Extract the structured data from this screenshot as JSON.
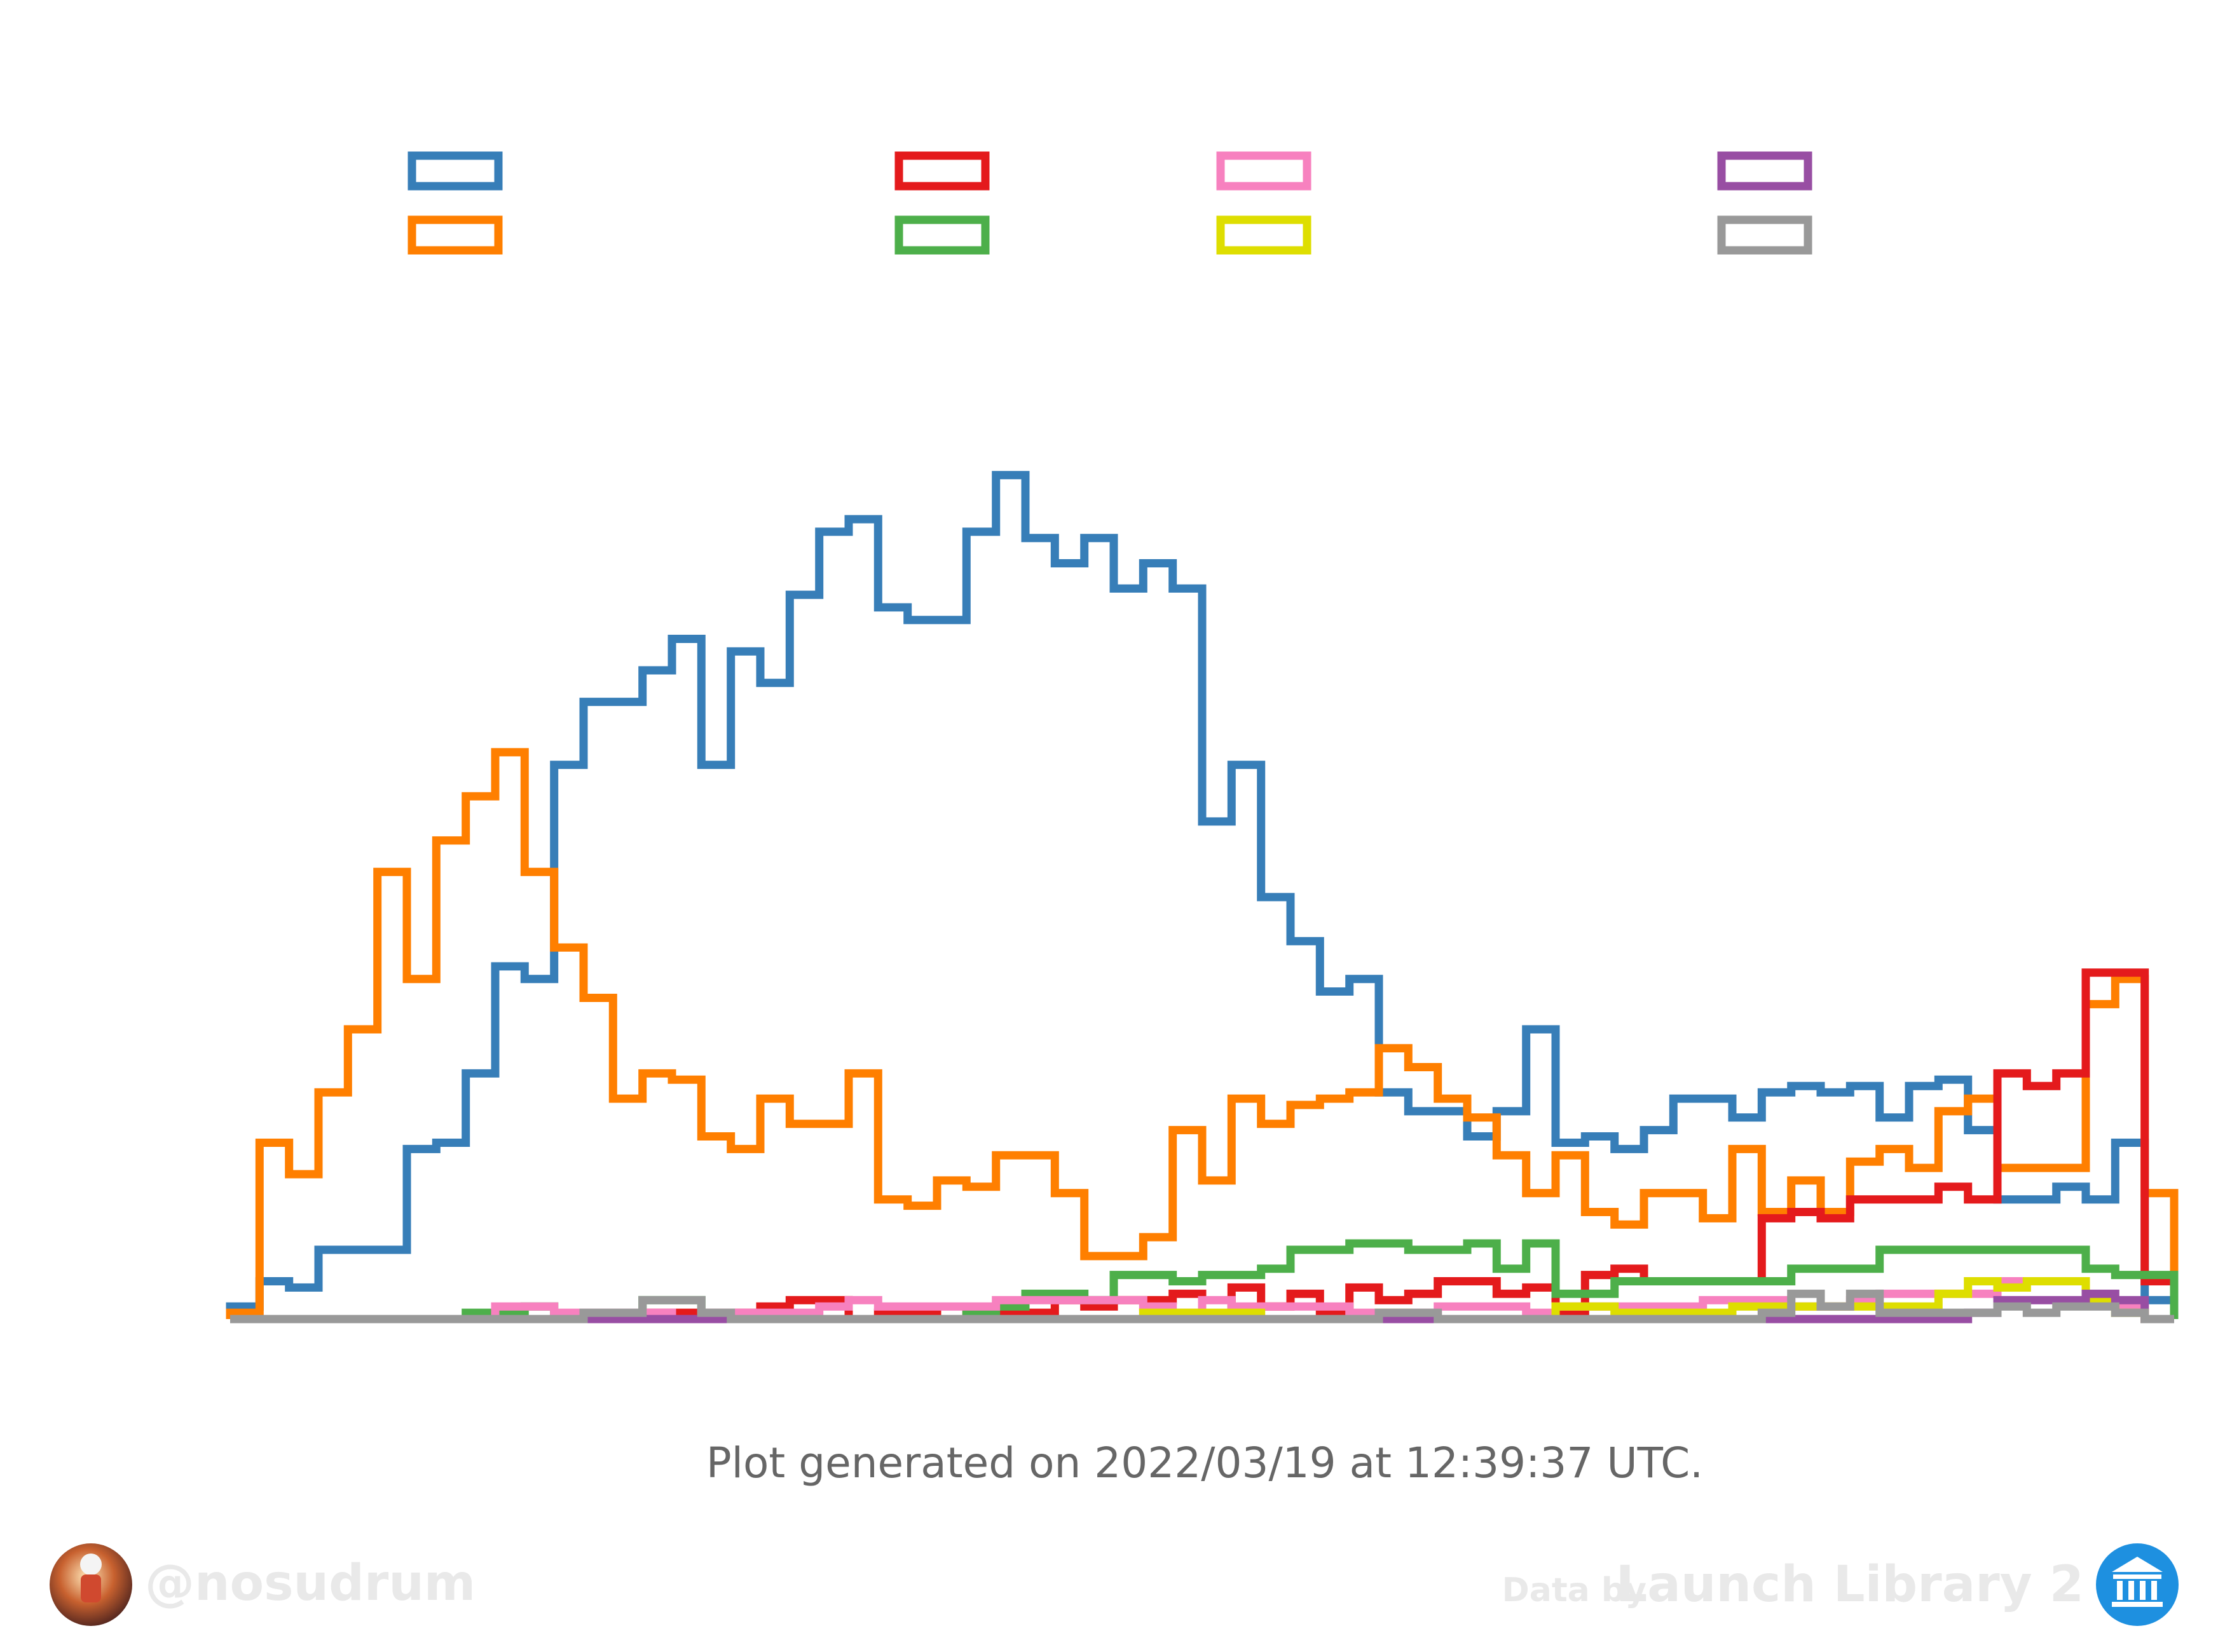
{
  "chart_data": {
    "type": "step",
    "title": "",
    "xlabel": "",
    "ylabel": "",
    "bins": 66,
    "ylim": [
      0,
      160
    ],
    "axes_visible": false,
    "legend": {
      "placement": "top",
      "columns": 4,
      "labels_visible": false
    },
    "series": [
      {
        "color": "#377eb8",
        "values": [
          2,
          6,
          5,
          11,
          11,
          11,
          27,
          28,
          39,
          56,
          54,
          88,
          98,
          98,
          103,
          108,
          88,
          106,
          101,
          115,
          125,
          127,
          113,
          111,
          111,
          125,
          134,
          124,
          120,
          124,
          116,
          120,
          116,
          79,
          88,
          67,
          60,
          52,
          54,
          36,
          33,
          33,
          29,
          33,
          46,
          28,
          29,
          27,
          30,
          35,
          35,
          32,
          36,
          37,
          36,
          37,
          32,
          37,
          38,
          30,
          19,
          19,
          21,
          19,
          28,
          3
        ]
      },
      {
        "color": "#ff7f00",
        "values": [
          1,
          28,
          23,
          36,
          46,
          71,
          54,
          76,
          83,
          90,
          71,
          59,
          51,
          35,
          39,
          38,
          29,
          27,
          35,
          31,
          31,
          39,
          19,
          18,
          22,
          21,
          26,
          26,
          20,
          10,
          10,
          13,
          30,
          22,
          35,
          31,
          34,
          35,
          36,
          43,
          40,
          35,
          32,
          26,
          20,
          26,
          17,
          15,
          20,
          20,
          16,
          27,
          17,
          22,
          17,
          25,
          27,
          24,
          33,
          35,
          24,
          24,
          24,
          50,
          54,
          20
        ]
      },
      {
        "color": "#e41a1c",
        "values": [
          0,
          0,
          0,
          0,
          0,
          0,
          0,
          0,
          0,
          0,
          0,
          0,
          0,
          0,
          1,
          1,
          1,
          1,
          2,
          3,
          3,
          0,
          1,
          1,
          0,
          1,
          1,
          1,
          3,
          2,
          3,
          3,
          4,
          0,
          5,
          2,
          4,
          1,
          5,
          3,
          4,
          6,
          6,
          4,
          5,
          1,
          7,
          8,
          6,
          6,
          6,
          6,
          16,
          17,
          16,
          19,
          19,
          19,
          21,
          19,
          39,
          37,
          39,
          55,
          55,
          6
        ]
      },
      {
        "color": "#4daf4a",
        "values": [
          0,
          0,
          0,
          0,
          0,
          0,
          0,
          0,
          1,
          1,
          2,
          0,
          0,
          0,
          3,
          3,
          1,
          0,
          0,
          0,
          0,
          0,
          0,
          0,
          0,
          1,
          2,
          4,
          4,
          3,
          7,
          7,
          6,
          7,
          7,
          8,
          11,
          11,
          12,
          12,
          11,
          11,
          12,
          8,
          12,
          4,
          4,
          6,
          6,
          6,
          6,
          6,
          6,
          8,
          8,
          8,
          11,
          11,
          11,
          11,
          11,
          11,
          11,
          8,
          7,
          7
        ]
      },
      {
        "color": "#f781bf",
        "values": [
          0,
          0,
          0,
          0,
          0,
          0,
          0,
          0,
          0,
          2,
          2,
          1,
          1,
          1,
          1,
          0,
          1,
          1,
          1,
          1,
          2,
          3,
          2,
          2,
          2,
          2,
          3,
          3,
          3,
          3,
          3,
          2,
          1,
          3,
          2,
          2,
          2,
          2,
          1,
          1,
          1,
          2,
          2,
          2,
          1,
          2,
          2,
          2,
          2,
          2,
          3,
          3,
          3,
          2,
          2,
          3,
          4,
          4,
          4,
          4,
          6,
          6,
          6,
          3,
          2,
          0
        ]
      },
      {
        "color": "#dede00",
        "values": [
          0,
          0,
          0,
          0,
          0,
          0,
          0,
          0,
          0,
          0,
          0,
          0,
          0,
          0,
          0,
          0,
          0,
          0,
          0,
          0,
          0,
          0,
          0,
          0,
          0,
          0,
          0,
          0,
          0,
          0,
          0,
          1,
          1,
          1,
          1,
          0,
          0,
          0,
          0,
          1,
          0,
          0,
          0,
          0,
          0,
          2,
          2,
          1,
          1,
          1,
          1,
          2,
          2,
          2,
          2,
          2,
          2,
          2,
          4,
          6,
          5,
          6,
          6,
          3,
          1,
          0
        ]
      },
      {
        "color": "#984ea3",
        "values": [
          0,
          0,
          0,
          0,
          0,
          0,
          0,
          0,
          0,
          0,
          0,
          0,
          0,
          0,
          0,
          0,
          0,
          0,
          0,
          0,
          0,
          0,
          0,
          0,
          0,
          0,
          0,
          0,
          0,
          0,
          0,
          0,
          0,
          0,
          0,
          0,
          0,
          0,
          0,
          0,
          0,
          0,
          0,
          0,
          0,
          0,
          0,
          0,
          0,
          0,
          0,
          0,
          0,
          0,
          0,
          0,
          0,
          0,
          0,
          1,
          3,
          3,
          3,
          4,
          3,
          0
        ]
      },
      {
        "color": "#999999",
        "values": [
          0,
          0,
          0,
          0,
          0,
          0,
          0,
          0,
          0,
          0,
          0,
          0,
          1,
          1,
          3,
          3,
          1,
          0,
          0,
          0,
          0,
          0,
          0,
          0,
          0,
          0,
          0,
          0,
          0,
          0,
          0,
          0,
          0,
          0,
          0,
          0,
          0,
          0,
          0,
          1,
          1,
          0,
          0,
          0,
          0,
          0,
          0,
          0,
          0,
          0,
          0,
          0,
          1,
          4,
          2,
          4,
          1,
          1,
          1,
          1,
          2,
          1,
          2,
          2,
          1,
          0
        ]
      }
    ]
  },
  "footer": {
    "generated_text": "Plot generated on 2022/03/19 at 12:39:37 UTC.",
    "handle": "@nosudrum",
    "data_by": "Data by",
    "source": "Launch Library 2"
  }
}
